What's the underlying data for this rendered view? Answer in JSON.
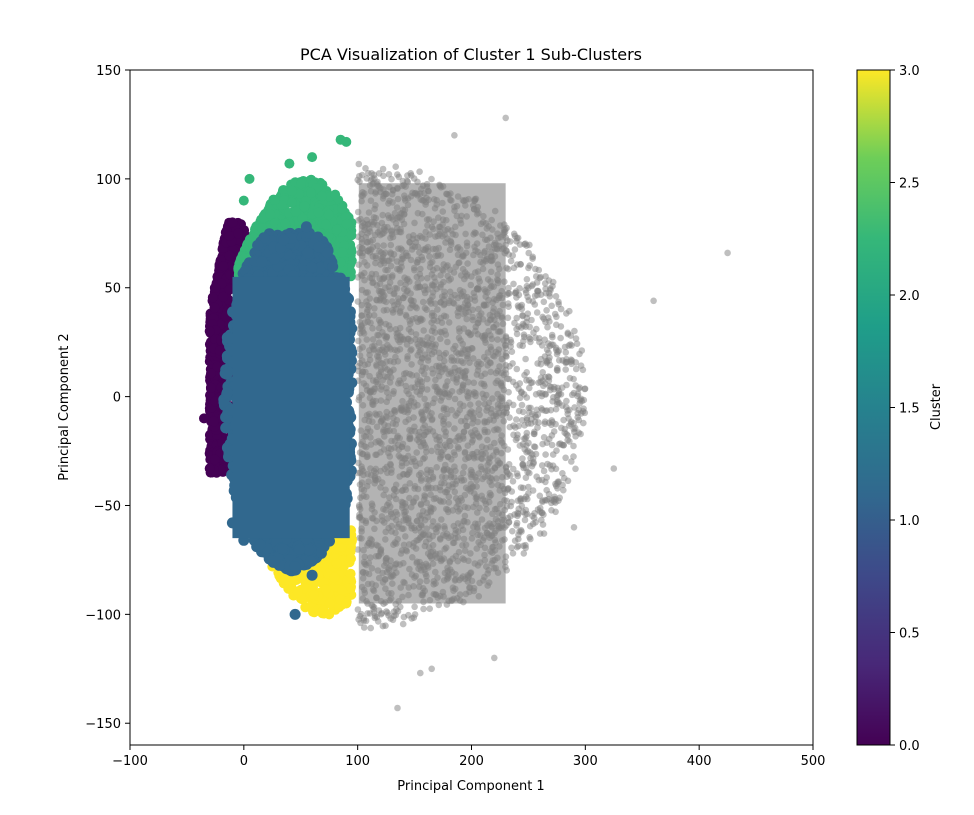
{
  "chart_data": {
    "type": "scatter",
    "title": "PCA Visualization of Cluster 1 Sub-Clusters",
    "xlabel": "Principal Component 1",
    "ylabel": "Principal Component 2",
    "xlim": [
      -100,
      500
    ],
    "ylim": [
      -160,
      150
    ],
    "xticks": [
      -100,
      0,
      100,
      200,
      300,
      400,
      500
    ],
    "xtick_labels": [
      "−100",
      "0",
      "100",
      "200",
      "300",
      "400",
      "500"
    ],
    "yticks": [
      -150,
      -100,
      -50,
      0,
      50,
      100,
      150
    ],
    "ytick_labels": [
      "−150",
      "−100",
      "−50",
      "0",
      "50",
      "100",
      "150"
    ],
    "grid": false,
    "colorbar": {
      "label": "Cluster",
      "range": [
        0.0,
        3.0
      ],
      "ticks": [
        0.0,
        0.5,
        1.0,
        1.5,
        2.0,
        2.5,
        3.0
      ],
      "tick_labels": [
        "0.0",
        "0.5",
        "1.0",
        "1.5",
        "2.0",
        "2.5",
        "3.0"
      ],
      "colormap": "viridis",
      "stops": [
        "#440154",
        "#3b528b",
        "#21908c",
        "#5dc863",
        "#fde725"
      ]
    },
    "series": [
      {
        "cluster_value": null,
        "color": "#808080",
        "opacity": 0.5,
        "note_points": [
          [
            425,
            66
          ],
          [
            360,
            44
          ],
          [
            135,
            -143
          ],
          [
            325,
            -33
          ],
          [
            290,
            -60
          ],
          [
            220,
            -120
          ],
          [
            165,
            -125
          ],
          [
            155,
            -127
          ],
          [
            230,
            128
          ],
          [
            185,
            120
          ]
        ],
        "region": {
          "x_min": 100,
          "x_max": 310,
          "y_min": -105,
          "y_max": 105
        }
      },
      {
        "cluster_value": 0,
        "color": "#440154",
        "opacity": 1.0,
        "note_points": [
          [
            -35,
            -10
          ],
          [
            -30,
            -33
          ],
          [
            -30,
            30
          ],
          [
            -25,
            50
          ],
          [
            -10,
            80
          ],
          [
            -5,
            75
          ]
        ],
        "region": {
          "x_min": -35,
          "x_max": 5,
          "y_min": -35,
          "y_max": 80
        }
      },
      {
        "cluster_value": 1,
        "color": "#31688e",
        "opacity": 1.0,
        "note_points": [
          [
            45,
            -100
          ],
          [
            0,
            -66
          ],
          [
            45,
            -78
          ],
          [
            60,
            -82
          ],
          [
            -10,
            -58
          ],
          [
            35,
            72
          ],
          [
            55,
            78
          ]
        ],
        "region": {
          "x_min": -15,
          "x_max": 95,
          "y_min": -80,
          "y_max": 75
        }
      },
      {
        "cluster_value": 2,
        "color": "#35b779",
        "opacity": 1.0,
        "note_points": [
          [
            5,
            100
          ],
          [
            85,
            118
          ],
          [
            60,
            110
          ],
          [
            40,
            107
          ],
          [
            0,
            90
          ],
          [
            90,
            117
          ]
        ],
        "region": {
          "x_min": -5,
          "x_max": 100,
          "y_min": 55,
          "y_max": 110
        }
      },
      {
        "cluster_value": 3,
        "color": "#fde725",
        "opacity": 1.0,
        "note_points": [
          [
            75,
            -100
          ],
          [
            70,
            -98
          ],
          [
            25,
            -78
          ],
          [
            40,
            -80
          ],
          [
            90,
            -95
          ]
        ],
        "region": {
          "x_min": 15,
          "x_max": 95,
          "y_min": -100,
          "y_max": -65
        }
      }
    ]
  }
}
